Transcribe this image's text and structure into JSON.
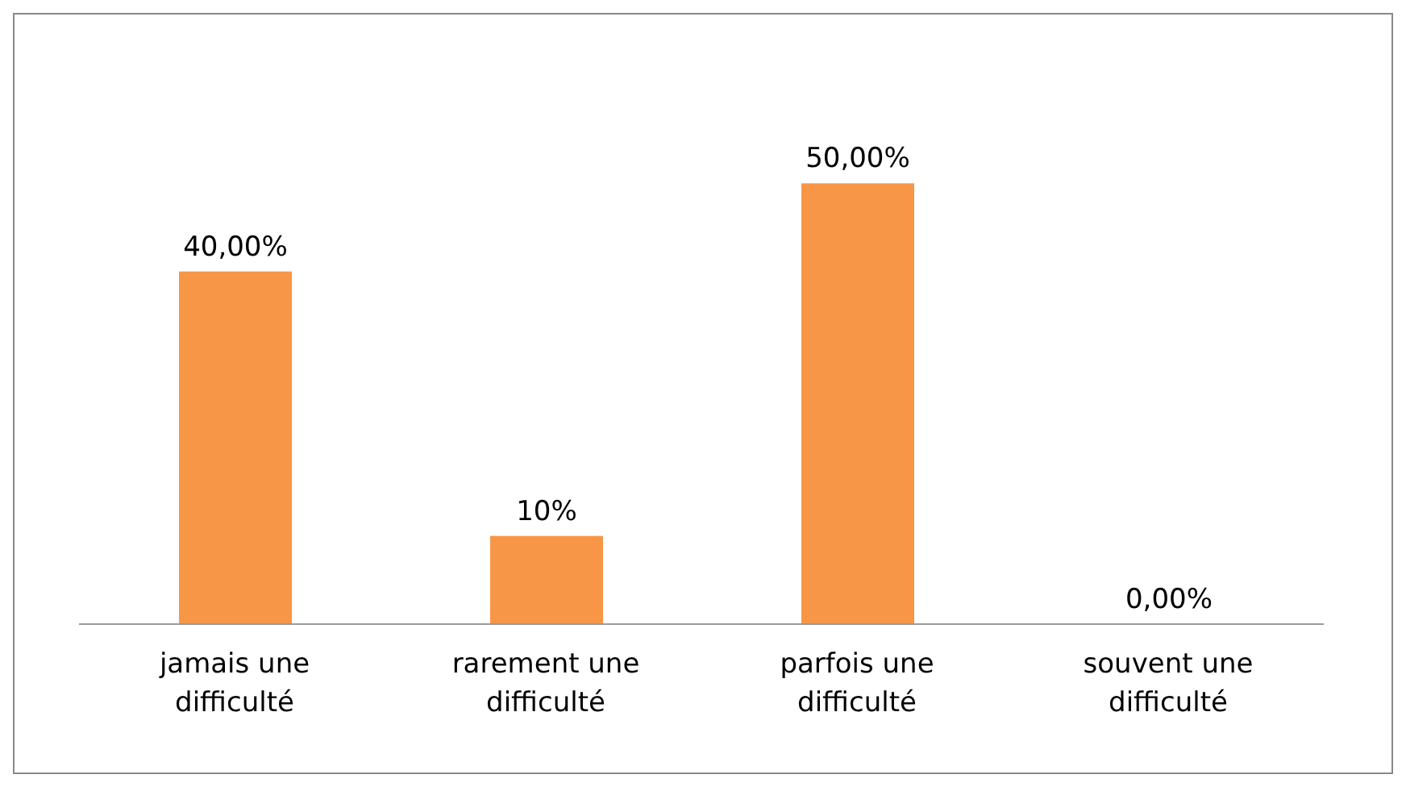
{
  "chart_data": {
    "type": "bar",
    "categories": [
      "jamais une difficulté",
      "rarement une difficulté",
      "parfois une difficulté",
      "souvent une difficulté"
    ],
    "values": [
      40,
      10,
      50,
      0
    ],
    "color": "#f79646",
    "value_labels": [
      "40,00%",
      "10%",
      "50,00%",
      "0,00%"
    ]
  }
}
